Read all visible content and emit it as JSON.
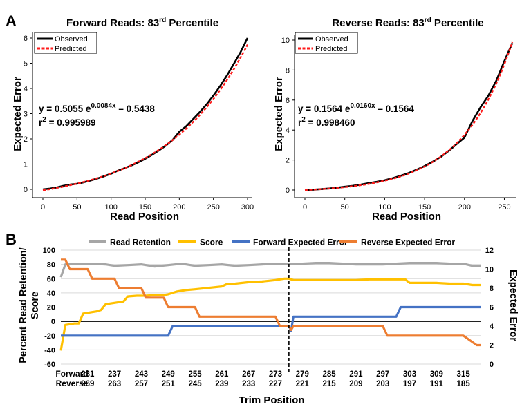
{
  "chart_data": [
    {
      "panel": "A",
      "type": "line",
      "title": "Forward Reads: 83",
      "title_sup": "rd",
      "title_suffix": " Percentile",
      "xlabel": "Read Position",
      "ylabel": "Expected Error",
      "xlim": [
        0,
        300
      ],
      "ylim": [
        0,
        6
      ],
      "xticks": [
        0,
        50,
        100,
        150,
        200,
        250,
        300
      ],
      "yticks": [
        0,
        1,
        2,
        3,
        4,
        5,
        6
      ],
      "legend": {
        "position": "top-left",
        "entries": [
          {
            "name": "Observed",
            "color": "#000000",
            "style": "solid"
          },
          {
            "name": "Predicted",
            "color": "#ff1a1a",
            "style": "dashed"
          }
        ]
      },
      "equation": {
        "prefix": "y = 0.5055 e",
        "exponent": "0.0084x",
        "suffix": " – 0.5438"
      },
      "r2": {
        "label": "r",
        "sup": "2",
        "value": " = 0.995989"
      },
      "model": {
        "a": 0.5055,
        "b": 0.0084,
        "c": -0.5438
      },
      "series": [
        {
          "name": "Observed",
          "x": [
            0,
            10,
            20,
            30,
            40,
            50,
            60,
            70,
            80,
            90,
            100,
            110,
            120,
            130,
            140,
            150,
            160,
            170,
            180,
            190,
            200,
            210,
            220,
            230,
            240,
            250,
            260,
            270,
            280,
            290,
            300
          ],
          "y": [
            0.0,
            0.03,
            0.07,
            0.14,
            0.19,
            0.22,
            0.28,
            0.35,
            0.43,
            0.52,
            0.62,
            0.74,
            0.84,
            0.95,
            1.07,
            1.21,
            1.37,
            1.54,
            1.73,
            1.95,
            2.28,
            2.5,
            2.78,
            3.06,
            3.37,
            3.72,
            4.1,
            4.52,
            4.98,
            5.45,
            6.0
          ]
        }
      ]
    },
    {
      "panel": "",
      "type": "line",
      "title": "Reverse Reads: 83",
      "title_sup": "rd",
      "title_suffix": " Percentile",
      "xlabel": "Read Position",
      "ylabel": "Expected Error",
      "xlim": [
        0,
        260
      ],
      "ylim": [
        0,
        10
      ],
      "xticks": [
        0,
        50,
        100,
        150,
        200,
        250
      ],
      "yticks": [
        0,
        2,
        4,
        6,
        8,
        10
      ],
      "legend": {
        "position": "top-left",
        "entries": [
          {
            "name": "Observed",
            "color": "#000000",
            "style": "solid"
          },
          {
            "name": "Predicted",
            "color": "#ff1a1a",
            "style": "dashed"
          }
        ]
      },
      "equation": {
        "prefix": "y = 0.1564 e",
        "exponent": "0.0160x",
        "suffix": " – 0.1564"
      },
      "r2": {
        "label": "r",
        "sup": "2",
        "value": " = 0.998460"
      },
      "model": {
        "a": 0.1564,
        "b": 0.016,
        "c": -0.1564
      },
      "series": [
        {
          "name": "Observed",
          "x": [
            0,
            10,
            20,
            30,
            40,
            50,
            60,
            70,
            80,
            90,
            100,
            110,
            120,
            130,
            140,
            150,
            160,
            170,
            180,
            190,
            200,
            210,
            220,
            230,
            240,
            250,
            260
          ],
          "y": [
            0.0,
            0.02,
            0.06,
            0.1,
            0.15,
            0.22,
            0.28,
            0.36,
            0.46,
            0.55,
            0.65,
            0.79,
            0.95,
            1.13,
            1.35,
            1.6,
            1.88,
            2.2,
            2.6,
            3.05,
            3.5,
            4.6,
            5.5,
            6.3,
            7.3,
            8.6,
            9.8
          ]
        }
      ]
    },
    {
      "panel": "B",
      "type": "line",
      "legend": [
        {
          "name": "Read Retention",
          "color": "#a6a6a6"
        },
        {
          "name": "Score",
          "color": "#ffc000"
        },
        {
          "name": "Forward Expected Error",
          "color": "#4472c4"
        },
        {
          "name": "Reverse Expected Error",
          "color": "#ed7d31"
        }
      ],
      "ylabel_left_line1": "Percent Read Retention/",
      "ylabel_left_line2": "Score",
      "ylabel_right": "Expected Error",
      "xlabel": "Trim Position",
      "y_left_lim": [
        -60,
        100
      ],
      "y_right_lim": [
        0,
        12
      ],
      "y_left_ticks": [
        100,
        80,
        60,
        40,
        20,
        0,
        -20,
        -40,
        -60
      ],
      "y_right_ticks": [
        12,
        10,
        8,
        6,
        4,
        2,
        0
      ],
      "x_first_label_forward": "Forward",
      "x_first_label_reverse": "Reverse",
      "x_tick_forward": [
        "231",
        "237",
        "243",
        "249",
        "255",
        "261",
        "267",
        "273",
        "279",
        "285",
        "291",
        "297",
        "303",
        "309",
        "315"
      ],
      "x_tick_reverse": [
        "269",
        "263",
        "257",
        "251",
        "245",
        "239",
        "233",
        "227",
        "221",
        "215",
        "209",
        "203",
        "197",
        "191",
        "185"
      ],
      "x_range": [
        225,
        319
      ],
      "dashed_marker_x": 276,
      "series": [
        {
          "name": "Read Retention",
          "axis": "left",
          "x": [
            225,
            226,
            230,
            232,
            235,
            237,
            240,
            243,
            246,
            249,
            252,
            255,
            258,
            261,
            264,
            267,
            270,
            273,
            276,
            279,
            282,
            285,
            288,
            291,
            294,
            297,
            300,
            303,
            306,
            309,
            312,
            315,
            317,
            319
          ],
          "y": [
            62,
            80,
            81,
            81,
            80,
            78,
            79,
            80,
            77,
            79,
            81,
            78,
            79,
            80,
            78,
            79,
            80,
            81,
            81,
            81,
            82,
            82,
            81,
            80,
            80,
            80,
            81,
            82,
            82,
            82,
            81,
            81,
            78,
            78
          ]
        },
        {
          "name": "Score",
          "axis": "left",
          "x": [
            225,
            226,
            227,
            228,
            229,
            230,
            231,
            232,
            233,
            234,
            235,
            236,
            237,
            238,
            239,
            240,
            242,
            243,
            244,
            246,
            248,
            249,
            251,
            252,
            253,
            255,
            258,
            261,
            262,
            264,
            267,
            270,
            273,
            275,
            276,
            277,
            279,
            282,
            285,
            288,
            291,
            294,
            297,
            300,
            302,
            303,
            306,
            309,
            312,
            315,
            317,
            319
          ],
          "y": [
            -41,
            -5,
            -4,
            -3,
            -3,
            11,
            12,
            13,
            14,
            16,
            24,
            25,
            26,
            27,
            28,
            35,
            36,
            36,
            36,
            37,
            37,
            38,
            42,
            43,
            44,
            45,
            47,
            49,
            52,
            53,
            55,
            56,
            58,
            60,
            60,
            58,
            58,
            58,
            58,
            58,
            58,
            59,
            59,
            59,
            59,
            54,
            54,
            54,
            53,
            53,
            51,
            51
          ]
        },
        {
          "name": "Forward Expected Error",
          "axis": "right",
          "x": [
            225,
            243,
            249,
            250,
            273,
            276,
            276.5,
            277,
            300,
            301,
            319
          ],
          "y": [
            3.0,
            3.0,
            3.0,
            4.0,
            4.0,
            4.0,
            3.5,
            5.0,
            5.0,
            6.0,
            6.0
          ]
        },
        {
          "name": "Reverse Expected Error",
          "axis": "right",
          "x": [
            225,
            226,
            227,
            231,
            232,
            237,
            238,
            243,
            244,
            248,
            249,
            255,
            256,
            273,
            274,
            276,
            276.5,
            277,
            297,
            298,
            315,
            318,
            319
          ],
          "y": [
            11,
            11,
            10,
            10,
            9,
            9,
            8,
            8,
            7,
            7,
            6,
            6,
            5,
            5,
            4,
            4,
            3.6,
            4,
            4,
            3,
            3,
            2,
            2
          ]
        }
      ]
    }
  ]
}
